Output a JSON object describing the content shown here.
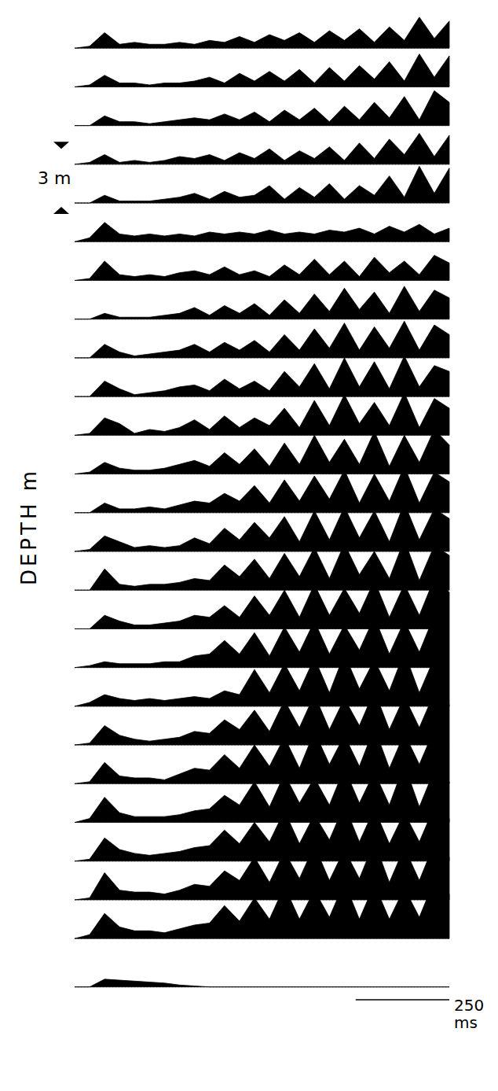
{
  "chart_data": {
    "type": "line",
    "ylabel": "DEPTH m",
    "color": "#000000",
    "tick_labels": false,
    "x": [
      0,
      40,
      80,
      120,
      160,
      200,
      240,
      280,
      320,
      360,
      400,
      440,
      480,
      520,
      560,
      600,
      640,
      680,
      720,
      760,
      800,
      840,
      880,
      920,
      960,
      1000
    ],
    "xlim": [
      0,
      1000
    ],
    "ylim": [
      -2,
      49
    ],
    "depth_scale": {
      "start": 5.2,
      "value": 3,
      "label": "3 m"
    },
    "time_scale": {
      "start": 750,
      "value": 250,
      "label": "250 ms"
    },
    "series": [
      {
        "depth": 0,
        "values": [
          0,
          0.1,
          0.8,
          0.2,
          0.3,
          0.2,
          0.2,
          0.3,
          0.2,
          0.4,
          0.3,
          0.6,
          0.3,
          0.7,
          0.4,
          0.8,
          0.3,
          0.9,
          0.4,
          1.0,
          0.3,
          1.1,
          0.4,
          1.6,
          0.5,
          1.4
        ]
      },
      {
        "depth": 2,
        "values": [
          0,
          0.1,
          0.6,
          0.2,
          0.2,
          0.1,
          0.2,
          0.2,
          0.3,
          0.5,
          0.2,
          0.7,
          0.3,
          0.8,
          0.3,
          0.9,
          0.2,
          1.0,
          0.3,
          1.1,
          0.4,
          1.3,
          0.3,
          1.7,
          0.5,
          1.6
        ]
      },
      {
        "depth": 4,
        "values": [
          0,
          0,
          0.5,
          0.2,
          0.2,
          0.1,
          0.2,
          0.3,
          0.4,
          0.3,
          0.6,
          0.3,
          0.7,
          0.2,
          0.8,
          0.3,
          0.9,
          0.2,
          1.0,
          0.3,
          1.2,
          0.4,
          1.5,
          0.3,
          1.8,
          1.2
        ]
      },
      {
        "depth": 6,
        "values": [
          0,
          0.1,
          0.5,
          0.1,
          0.2,
          0.1,
          0.2,
          0.4,
          0.3,
          0.5,
          0.2,
          0.6,
          0.3,
          0.8,
          0.2,
          0.7,
          0.3,
          0.9,
          0.2,
          1.1,
          0.3,
          1.3,
          0.5,
          1.6,
          0.4,
          1.5
        ]
      },
      {
        "depth": 8,
        "values": [
          0,
          0,
          0.4,
          0.1,
          0.1,
          0.1,
          0.2,
          0.3,
          0.5,
          0.2,
          0.6,
          0.3,
          0.4,
          0.9,
          0.2,
          0.8,
          0.3,
          1.0,
          0.2,
          0.9,
          0.4,
          1.4,
          0.3,
          1.9,
          0.5,
          1.8
        ]
      },
      {
        "depth": 10,
        "values": [
          0,
          0.2,
          1.0,
          0.4,
          0.3,
          0.4,
          0.3,
          0.4,
          0.3,
          0.5,
          0.4,
          0.5,
          0.4,
          0.6,
          0.4,
          0.5,
          0.4,
          0.6,
          0.5,
          0.7,
          0.4,
          0.8,
          0.5,
          0.9,
          0.4,
          0.7
        ]
      },
      {
        "depth": 12,
        "values": [
          0,
          0.1,
          1.0,
          0.3,
          0.2,
          0.3,
          0.2,
          0.4,
          0.5,
          0.3,
          0.7,
          0.3,
          0.5,
          0.2,
          0.8,
          0.3,
          1.1,
          0.3,
          1.0,
          0.2,
          1.2,
          0.4,
          1.0,
          0.3,
          1.3,
          0.9
        ]
      },
      {
        "depth": 14,
        "values": [
          0,
          0,
          0.3,
          0.1,
          0.1,
          0.1,
          0.2,
          0.3,
          0.6,
          0.2,
          0.7,
          0.3,
          0.8,
          0.2,
          1.0,
          0.3,
          1.3,
          0.4,
          1.6,
          0.5,
          1.4,
          0.3,
          1.7,
          0.4,
          1.5,
          1.1
        ]
      },
      {
        "depth": 16,
        "values": [
          0,
          0,
          0.7,
          0.3,
          0.1,
          0.2,
          0.3,
          0.4,
          0.7,
          0.3,
          0.8,
          0.4,
          0.9,
          0.3,
          1.2,
          0.4,
          1.5,
          0.5,
          1.8,
          0.4,
          1.6,
          0.5,
          1.9,
          0.4,
          1.7,
          1.2
        ]
      },
      {
        "depth": 18,
        "values": [
          0,
          0,
          0.8,
          0.4,
          0.1,
          0.2,
          0.3,
          0.5,
          0.6,
          0.3,
          0.9,
          0.4,
          0.8,
          0.3,
          1.3,
          0.5,
          1.7,
          0.4,
          2.0,
          0.5,
          1.8,
          0.4,
          2.1,
          0.5,
          1.6,
          1.3
        ]
      },
      {
        "depth": 20,
        "values": [
          0,
          0.1,
          0.9,
          0.6,
          0.1,
          0.3,
          0.2,
          0.4,
          0.8,
          0.3,
          1.0,
          0.4,
          0.9,
          0.5,
          1.4,
          0.4,
          1.8,
          0.5,
          2.1,
          0.6,
          1.7,
          0.5,
          2.2,
          0.4,
          1.9,
          1.4
        ]
      },
      {
        "depth": 22,
        "values": [
          0,
          0.1,
          0.6,
          0.3,
          0.2,
          0.2,
          0.3,
          0.5,
          0.7,
          0.4,
          1.1,
          0.5,
          1.3,
          0.4,
          1.6,
          0.5,
          2.0,
          0.6,
          1.8,
          0.5,
          2.2,
          0.4,
          2.0,
          0.6,
          2.3,
          1.5
        ]
      },
      {
        "depth": 24,
        "values": [
          0,
          0,
          0.5,
          0.2,
          0.2,
          0.3,
          0.2,
          0.4,
          0.6,
          0.5,
          1.0,
          0.6,
          1.4,
          0.5,
          1.7,
          0.6,
          1.9,
          0.7,
          2.2,
          0.5,
          2.0,
          0.6,
          2.4,
          0.5,
          2.1,
          1.6
        ]
      },
      {
        "depth": 26,
        "values": [
          0,
          0.1,
          0.8,
          0.5,
          0.2,
          0.3,
          0.2,
          0.3,
          0.7,
          0.4,
          1.2,
          0.6,
          1.5,
          0.7,
          1.8,
          0.5,
          2.1,
          0.6,
          2.3,
          0.7,
          2.1,
          0.5,
          2.5,
          0.6,
          2.2,
          1.7
        ]
      },
      {
        "depth": 28,
        "values": [
          0,
          0,
          1.1,
          0.3,
          0.2,
          0.3,
          0.3,
          0.4,
          0.6,
          0.5,
          1.3,
          0.7,
          1.6,
          0.6,
          1.9,
          0.7,
          2.2,
          0.6,
          2.4,
          0.8,
          2.0,
          0.6,
          2.6,
          0.5,
          2.3,
          1.8
        ]
      },
      {
        "depth": 30,
        "values": [
          0,
          0,
          0.7,
          0.4,
          0.2,
          0.2,
          0.3,
          0.4,
          0.7,
          0.6,
          1.2,
          0.6,
          1.7,
          0.7,
          2.0,
          0.6,
          2.3,
          0.7,
          2.1,
          0.8,
          2.5,
          0.6,
          2.3,
          0.7,
          2.6,
          1.9
        ]
      },
      {
        "depth": 32,
        "values": [
          0,
          0.1,
          0.3,
          0.2,
          0.2,
          0.2,
          0.3,
          0.3,
          0.6,
          0.7,
          1.4,
          0.7,
          1.8,
          0.6,
          2.1,
          0.8,
          2.4,
          0.7,
          2.2,
          0.9,
          2.6,
          0.7,
          2.4,
          0.8,
          2.7,
          2.0
        ]
      },
      {
        "depth": 34,
        "values": [
          0,
          0.2,
          0.6,
          0.4,
          0.3,
          0.4,
          0.3,
          0.4,
          0.5,
          0.4,
          0.8,
          0.6,
          1.9,
          0.7,
          2.2,
          0.8,
          2.5,
          0.7,
          2.7,
          0.9,
          2.4,
          0.8,
          2.8,
          0.7,
          2.5,
          2.0
        ]
      },
      {
        "depth": 36,
        "values": [
          0,
          0.1,
          1.0,
          0.5,
          0.3,
          0.2,
          0.3,
          0.4,
          0.7,
          0.6,
          1.3,
          0.8,
          1.8,
          0.7,
          2.3,
          0.9,
          2.6,
          0.8,
          2.4,
          1.0,
          2.8,
          0.8,
          2.5,
          0.9,
          2.7,
          2.1
        ]
      },
      {
        "depth": 38,
        "values": [
          0,
          0.1,
          1.1,
          0.4,
          0.3,
          0.3,
          0.2,
          0.5,
          0.8,
          0.7,
          1.5,
          0.8,
          2.0,
          0.9,
          2.4,
          0.8,
          2.7,
          1.0,
          2.5,
          0.9,
          2.9,
          0.8,
          2.6,
          1.0,
          2.8,
          2.0
        ]
      },
      {
        "depth": 40,
        "values": [
          0,
          0.2,
          1.3,
          0.5,
          0.3,
          0.3,
          0.3,
          0.4,
          0.6,
          0.7,
          1.4,
          0.9,
          2.1,
          0.8,
          2.5,
          1.0,
          2.3,
          0.9,
          2.8,
          1.0,
          2.6,
          0.9,
          3.0,
          0.8,
          2.7,
          2.1
        ]
      },
      {
        "depth": 42,
        "values": [
          0,
          0.1,
          1.2,
          0.6,
          0.4,
          0.3,
          0.4,
          0.5,
          0.7,
          0.8,
          1.6,
          0.9,
          2.0,
          1.0,
          2.6,
          0.9,
          2.4,
          1.1,
          2.9,
          1.0,
          2.7,
          0.9,
          2.5,
          1.0,
          2.8,
          2.2
        ]
      },
      {
        "depth": 44,
        "values": [
          0,
          0.1,
          1.4,
          0.5,
          0.4,
          0.4,
          0.3,
          0.5,
          0.8,
          0.7,
          1.5,
          1.0,
          2.2,
          0.9,
          2.5,
          1.1,
          2.8,
          1.0,
          2.6,
          1.1,
          3.0,
          0.9,
          2.7,
          1.0,
          2.9,
          2.2
        ]
      },
      {
        "depth": 46,
        "values": [
          0,
          0.2,
          1.3,
          0.6,
          0.4,
          0.4,
          0.3,
          0.5,
          0.7,
          0.8,
          1.7,
          0.9,
          2.1,
          1.0,
          2.7,
          1.0,
          2.5,
          1.1,
          2.9,
          1.0,
          2.8,
          1.0,
          2.6,
          1.1,
          3.0,
          2.3
        ]
      },
      {
        "depth": 48.5,
        "values": [
          0,
          0,
          0.4,
          0.35,
          0.3,
          0.25,
          0.2,
          0.1,
          0.05,
          0,
          0,
          0,
          0,
          0,
          0,
          0,
          0,
          0,
          0,
          0,
          0,
          0,
          0,
          0,
          0,
          0
        ]
      }
    ]
  }
}
